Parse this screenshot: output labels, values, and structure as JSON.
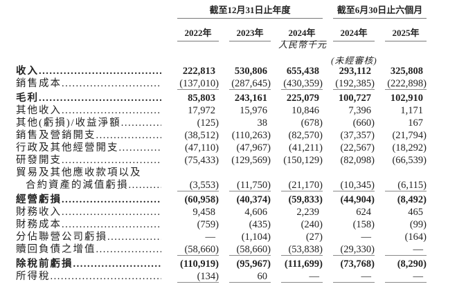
{
  "header": {
    "group_annual": "截至12月31日止年度",
    "group_interim": "截至6月30日止六個月",
    "years": [
      "2022年",
      "2023年",
      "2024年",
      "2024年",
      "2025年"
    ],
    "currency_unit": "人民幣千元",
    "unaudited": "(未經審核)"
  },
  "rows": [
    {
      "label": "收入",
      "values": [
        "222,813",
        "530,806",
        "655,438",
        "293,112",
        "325,808"
      ]
    },
    {
      "label": "銷售成本",
      "values": [
        "(137,010)",
        "(287,645)",
        "(430,359)",
        "(192,385)",
        "(222,898)"
      ]
    },
    {
      "label": "毛利",
      "values": [
        "85,803",
        "243,161",
        "225,079",
        "100,727",
        "102,910"
      ]
    },
    {
      "label": "其他收入",
      "values": [
        "17,972",
        "15,976",
        "10,846",
        "7,396",
        "1,171"
      ]
    },
    {
      "label": "其他(虧損)/收益淨額",
      "values": [
        "(125)",
        "38",
        "(678)",
        "(660)",
        "167"
      ]
    },
    {
      "label": "銷售及營銷開支",
      "values": [
        "(38,512)",
        "(110,263)",
        "(82,570)",
        "(37,357)",
        "(21,794)"
      ]
    },
    {
      "label": "行政及其他經營開支",
      "values": [
        "(47,110)",
        "(47,967)",
        "(41,211)",
        "(22,567)",
        "(18,292)"
      ]
    },
    {
      "label": "研發開支",
      "values": [
        "(75,433)",
        "(129,569)",
        "(150,129)",
        "(82,098)",
        "(66,539)"
      ]
    },
    {
      "label": "貿易及其他應收款項以及",
      "values": []
    },
    {
      "label": "合約資產的減值虧損",
      "values": [
        "(3,553)",
        "(11,750)",
        "(21,170)",
        "(10,345)",
        "(6,115)"
      ]
    },
    {
      "label": "經營虧損",
      "values": [
        "(60,958)",
        "(40,374)",
        "(59,833)",
        "(44,904)",
        "(8,492)"
      ]
    },
    {
      "label": "財務收入",
      "values": [
        "9,458",
        "4,606",
        "2,239",
        "624",
        "465"
      ]
    },
    {
      "label": "財務成本",
      "values": [
        "(759)",
        "(435)",
        "(240)",
        "(158)",
        "(99)"
      ]
    },
    {
      "label": "分佔聯營公司虧損",
      "values": [
        "—",
        "(1,104)",
        "(27)",
        "—",
        "(164)"
      ]
    },
    {
      "label": "贖回負債之增值",
      "values": [
        "(58,660)",
        "(58,660)",
        "(53,838)",
        "(29,330)",
        "—"
      ]
    },
    {
      "label": "除稅前虧損",
      "values": [
        "(110,919)",
        "(95,967)",
        "(111,699)",
        "(73,768)",
        "(8,290)"
      ]
    },
    {
      "label": "所得稅",
      "values": [
        "(134)",
        "60",
        "—",
        "—",
        "—"
      ]
    }
  ]
}
